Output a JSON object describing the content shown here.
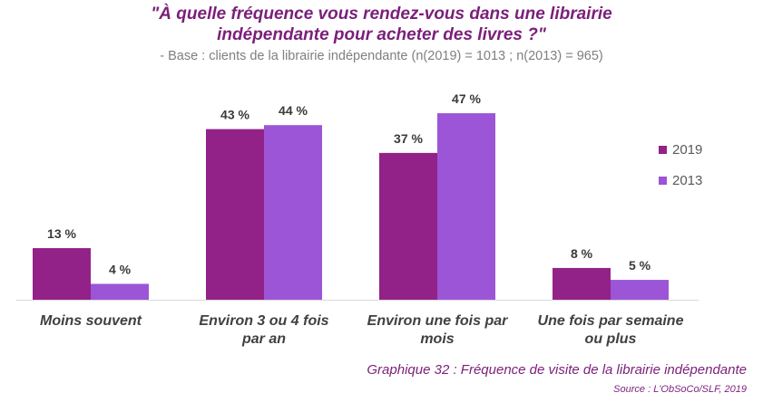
{
  "header": {
    "title_line1": "\"À quelle fréquence vous rendez-vous dans une librairie",
    "title_line2": "indépendante pour acheter des livres ?\"",
    "subtitle": "- Base : clients de la librairie indépendante (n(2019) = 1013 ; n(2013) = 965)"
  },
  "chart_data": {
    "type": "bar",
    "categories": [
      [
        "Moins souvent"
      ],
      [
        "Environ 3 ou 4 fois",
        "par an"
      ],
      [
        "Environ une fois par",
        "mois"
      ],
      [
        "Une fois par semaine",
        "ou plus"
      ]
    ],
    "series": [
      {
        "name": "2019",
        "values": [
          13,
          43,
          37,
          8
        ],
        "color": "#922287"
      },
      {
        "name": "2013",
        "values": [
          4,
          44,
          47,
          5
        ],
        "color": "#9b55d6"
      }
    ],
    "value_suffix": " %",
    "ylim": [
      0,
      55
    ],
    "grid": false,
    "legend_position": "right"
  },
  "footer": {
    "caption": "Graphique 32 : Fréquence de visite de la librairie indépendante",
    "source": "Source : L'ObSoCo/SLF, 2019"
  }
}
